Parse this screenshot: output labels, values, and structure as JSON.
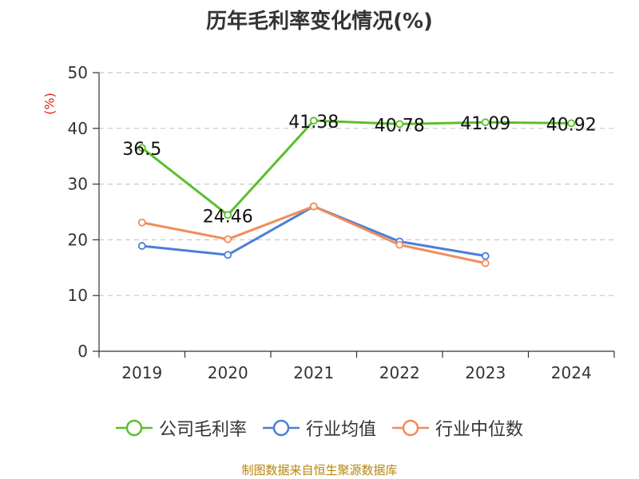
{
  "chart_data": {
    "type": "line",
    "title": "历年毛利率变化情况(%)",
    "ylabel": "(%)",
    "xlabel": "",
    "categories": [
      "2019",
      "2020",
      "2021",
      "2022",
      "2023",
      "2024"
    ],
    "ylim": [
      0,
      50
    ],
    "yticks": [
      0,
      10,
      20,
      30,
      40,
      50
    ],
    "grid": true,
    "legend_position": "bottom",
    "series": [
      {
        "name": "公司毛利率",
        "color": "#5cbf2a",
        "values": [
          36.5,
          24.46,
          41.38,
          40.78,
          41.09,
          40.92
        ],
        "data_labels": [
          "36.5",
          "24.46",
          "41.38",
          "40.78",
          "41.09",
          "40.92"
        ]
      },
      {
        "name": "行业均值",
        "color": "#4a7fd8",
        "values": [
          18.9,
          17.3,
          26.0,
          19.7,
          17.1,
          null
        ]
      },
      {
        "name": "行业中位数",
        "color": "#f28c5a",
        "values": [
          23.1,
          20.1,
          26.0,
          19.1,
          15.8,
          null
        ]
      }
    ]
  },
  "source_note": "制图数据来自恒生聚源数据库"
}
